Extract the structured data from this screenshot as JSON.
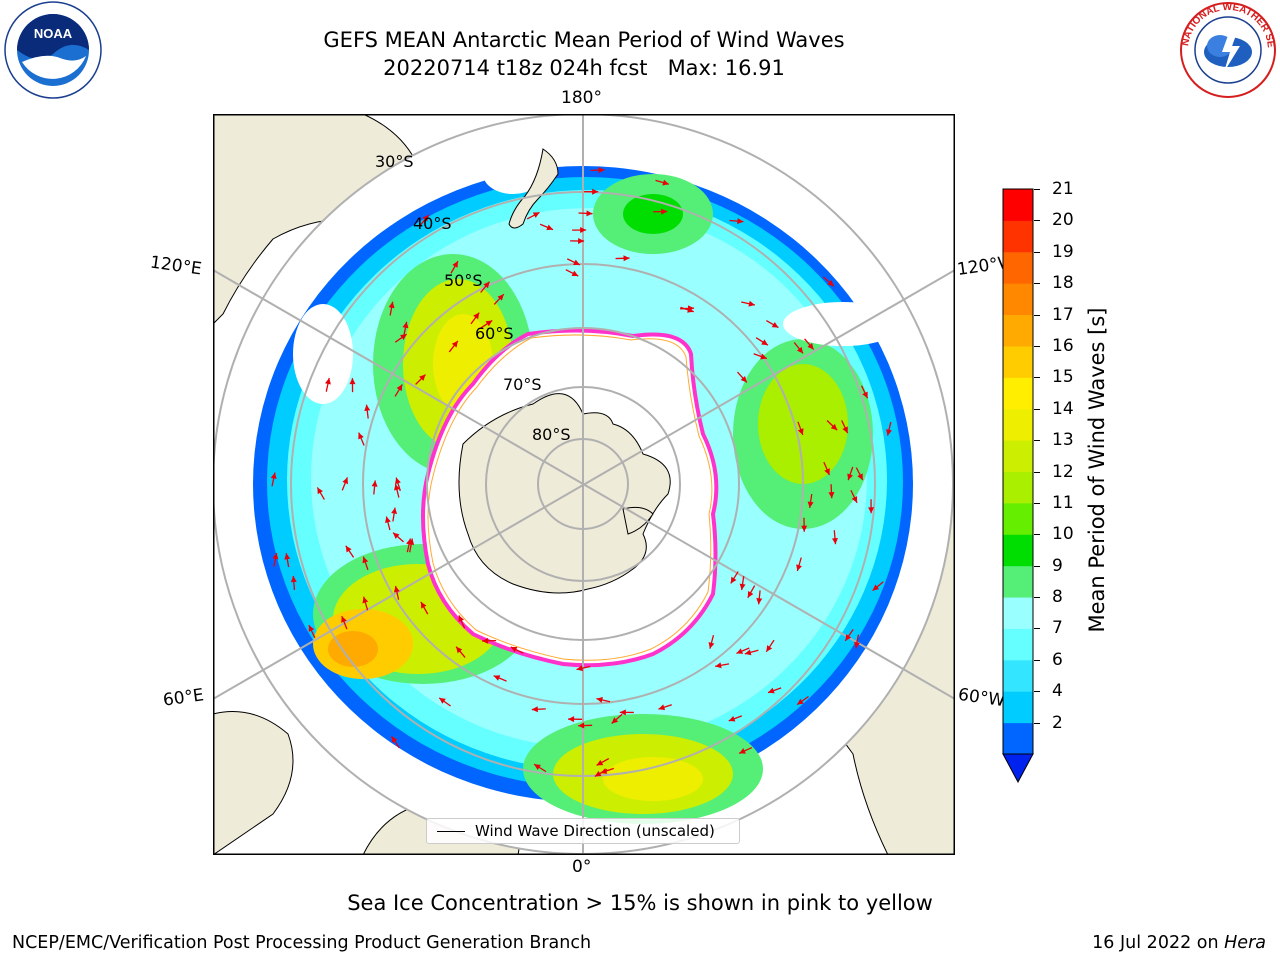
{
  "title": {
    "line1": "GEFS MEAN Antarctic Mean Period of Wind Waves",
    "line2": "20220714 t18z 024h fcst   Max: 16.91"
  },
  "map": {
    "projection": "south-polar-stereographic",
    "longitude_labels": {
      "top": "180°",
      "bottom": "0°",
      "upper_left": "120°E",
      "upper_right": "120°W",
      "lower_left": "60°E",
      "lower_right": "60°W"
    },
    "latitude_labels": [
      "30°S",
      "40°S",
      "50°S",
      "60°S",
      "70°S",
      "80°S"
    ],
    "land_color": "#efebd9",
    "grid_color": "#b0b0b0",
    "arrow_color": "#e8000b",
    "sea_ice_edge_color": "#ff33cc"
  },
  "legend": {
    "label": "Wind Wave Direction (unscaled)"
  },
  "colorbar": {
    "label": "Mean Period of Wind Waves [s]",
    "ticks": [
      "21",
      "20",
      "19",
      "18",
      "17",
      "16",
      "15",
      "14",
      "13",
      "12",
      "11",
      "10",
      "9",
      "8",
      "7",
      "6",
      "4",
      "2"
    ],
    "colors_bottom_to_top": [
      "#0066ff",
      "#00ccff",
      "#33e5ff",
      "#66ffff",
      "#99ffff",
      "#55ee77",
      "#00dd00",
      "#66ee00",
      "#aaee00",
      "#ccee00",
      "#eeee00",
      "#ffee00",
      "#ffcc00",
      "#ffaa00",
      "#ff8800",
      "#ff6600",
      "#ff3300",
      "#ff0000"
    ],
    "under_color": "#0022ee"
  },
  "note": "Sea Ice Concentration > 15% is shown in pink to yellow",
  "footer": {
    "left": "NCEP/EMC/Verification Post Processing Product Generation Branch",
    "date": "16 Jul 2022 on ",
    "machine": "Hera"
  },
  "logos": {
    "left": "NOAA",
    "right": "NATIONAL WEATHER SERVICE"
  }
}
